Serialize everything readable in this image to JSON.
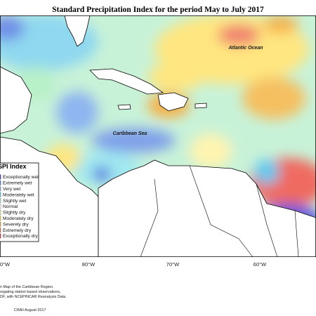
{
  "title": "Standard Precipitation Index for the period May to July 2017",
  "labels": {
    "ocean": "Atlantic Ocean",
    "sea": "Caribbean Sea"
  },
  "legend": {
    "title": "SPI Index",
    "items": [
      {
        "label": "Exceptionally wet",
        "color": "#3b3bd6"
      },
      {
        "label": "Extremely wet",
        "color": "#5a7ee6"
      },
      {
        "label": "Very wet",
        "color": "#8fb6f0"
      },
      {
        "label": "Moderately wet",
        "color": "#5fd6e6"
      },
      {
        "label": "Slightly wet",
        "color": "#b8f0c8"
      },
      {
        "label": "Normal",
        "color": "#ffffff"
      },
      {
        "label": "Slightly dry",
        "color": "#fff7b0"
      },
      {
        "label": "Moderately dry",
        "color": "#ffe066"
      },
      {
        "label": "Severely dry",
        "color": "#f5b04a"
      },
      {
        "label": "Extremely dry",
        "color": "#f08070"
      },
      {
        "label": "Exceptionally dry",
        "color": "#e83a3a"
      }
    ]
  },
  "longitudes": [
    "0°W",
    "80°W",
    "70°W",
    "60°W"
  ],
  "footer": {
    "lines": [
      "n Map of the Caribbean Region.",
      "regating station based observations,",
      "DF, with NCEPINCAR Reanalysis Data."
    ],
    "credit": "CIMH August-2017"
  }
}
